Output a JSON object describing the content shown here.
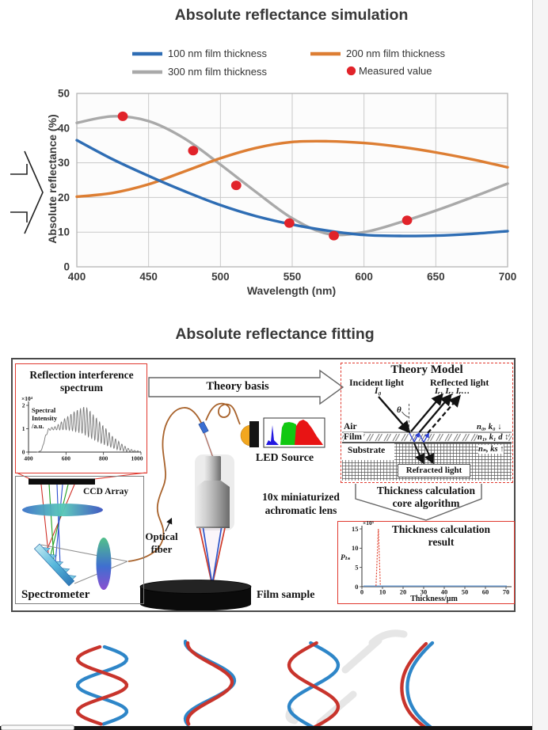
{
  "page": {
    "colors": {
      "accent_red": "#e0392f",
      "outer_box_border": "#4a4a4a",
      "fiber_brown": "#a8622b",
      "helix_red": "#c8342c",
      "helix_blue": "#2e86c8",
      "chart_text": "#3a3a3a"
    }
  },
  "simulation": {
    "title": "Absolute reflectance simulation",
    "xlabel": "Wavelength (nm)",
    "ylabel": "Absolute reflectance (%)",
    "legend": [
      {
        "label": "100 nm film thickness",
        "color": "#2e6db4",
        "marker": "line"
      },
      {
        "label": "200 nm film thickness",
        "color": "#dd7e33",
        "marker": "line"
      },
      {
        "label": "300 nm film thickness",
        "color": "#a9a9a9",
        "marker": "line"
      },
      {
        "label": "Measured value",
        "color": "#e1232a",
        "marker": "dot"
      }
    ]
  },
  "chart_data": [
    {
      "type": "line",
      "title": "Absolute reflectance simulation",
      "xlabel": "Wavelength (nm)",
      "ylabel": "Absolute reflectance (%)",
      "xlim": [
        400,
        700
      ],
      "ylim": [
        0,
        50
      ],
      "xticks": [
        400,
        450,
        500,
        550,
        600,
        650,
        700
      ],
      "yticks": [
        0,
        10,
        20,
        30,
        40,
        50
      ],
      "grid": true,
      "legend_position": "top",
      "x": [
        400,
        425,
        450,
        475,
        500,
        525,
        550,
        575,
        600,
        625,
        650,
        675,
        700
      ],
      "series": [
        {
          "name": "100 nm film thickness",
          "color": "#2e6db4",
          "values": [
            36.5,
            31.0,
            26.2,
            21.8,
            17.8,
            14.6,
            12.2,
            10.4,
            9.2,
            8.9,
            9.0,
            9.5,
            10.3
          ]
        },
        {
          "name": "200 nm film thickness",
          "color": "#dd7e33",
          "values": [
            20.2,
            21.3,
            23.8,
            27.5,
            31.3,
            34.3,
            36.0,
            36.2,
            35.7,
            34.6,
            33.0,
            31.0,
            28.7
          ]
        },
        {
          "name": "300 nm film thickness",
          "color": "#a9a9a9",
          "values": [
            41.5,
            43.4,
            42.0,
            37.0,
            29.5,
            21.5,
            14.0,
            9.5,
            10.0,
            12.8,
            16.2,
            20.0,
            24.0
          ]
        }
      ],
      "measured_points": {
        "name": "Measured value",
        "color": "#e1232a",
        "points": [
          [
            432,
            43.4
          ],
          [
            481,
            33.5
          ],
          [
            511,
            23.5
          ],
          [
            548,
            12.6
          ],
          [
            579,
            9.0
          ],
          [
            630,
            13.4
          ]
        ]
      }
    },
    {
      "type": "line",
      "title": "Reflection interference spectrum",
      "ylabel": "Spectral Intensity /a.u.",
      "y_scale": "×10⁴",
      "xticks": [
        400,
        600,
        800,
        1000
      ],
      "yticks": [
        0,
        1,
        2
      ],
      "xlim": [
        400,
        1000
      ],
      "ylim": [
        0,
        2
      ],
      "envelope_upper": [
        [
          455,
          0.02
        ],
        [
          470,
          0.1
        ],
        [
          490,
          0.7
        ],
        [
          505,
          1.0
        ],
        [
          520,
          1.05
        ],
        [
          545,
          1.1
        ],
        [
          570,
          1.25
        ],
        [
          595,
          1.45
        ],
        [
          620,
          1.6
        ],
        [
          645,
          1.75
        ],
        [
          670,
          1.85
        ],
        [
          695,
          1.95
        ],
        [
          715,
          1.9
        ],
        [
          740,
          1.65
        ],
        [
          765,
          1.45
        ],
        [
          790,
          1.2
        ],
        [
          815,
          1.0
        ],
        [
          845,
          0.7
        ],
        [
          875,
          0.5
        ],
        [
          905,
          0.3
        ],
        [
          935,
          0.15
        ],
        [
          965,
          0.07
        ],
        [
          1000,
          0.04
        ]
      ],
      "envelope_lower": [
        [
          455,
          0.0
        ],
        [
          470,
          0.08
        ],
        [
          490,
          0.6
        ],
        [
          505,
          0.9
        ],
        [
          520,
          0.95
        ],
        [
          545,
          0.95
        ],
        [
          570,
          0.95
        ],
        [
          595,
          0.95
        ],
        [
          620,
          0.92
        ],
        [
          645,
          0.88
        ],
        [
          670,
          0.82
        ],
        [
          695,
          0.75
        ],
        [
          715,
          0.65
        ],
        [
          740,
          0.55
        ],
        [
          765,
          0.45
        ],
        [
          790,
          0.35
        ],
        [
          815,
          0.28
        ],
        [
          845,
          0.18
        ],
        [
          875,
          0.1
        ],
        [
          905,
          0.05
        ],
        [
          935,
          0.02
        ],
        [
          965,
          0.01
        ],
        [
          1000,
          0.0
        ]
      ],
      "fringe_period_nm": 17
    },
    {
      "type": "line",
      "title": "Thickness calculation result",
      "xlabel": "Thickness/μm",
      "ylabel": "Pₗₛ",
      "y_scale": "×10⁵",
      "xticks": [
        0,
        10,
        20,
        30,
        40,
        50,
        60,
        70
      ],
      "yticks": [
        0,
        5,
        10,
        15
      ],
      "xlim": [
        0,
        70
      ],
      "ylim": [
        0,
        15.5
      ],
      "peak": {
        "x": 8,
        "height": 15
      },
      "baseline": 0
    }
  ],
  "fitting": {
    "title": "Absolute reflectance fitting",
    "spectrum_box": {
      "title_line1": "Reflection interference",
      "title_line2": "spectrum",
      "scale_label": "×10⁴",
      "ylabel_line1": "Spectral",
      "ylabel_line2": "Intensity",
      "ylabel_line3": "/a.u."
    },
    "theory_basis_label": "Theory basis",
    "theory_model": {
      "title": "Theory Model",
      "incident_label": "Incident light",
      "incident_symbol": "I₀",
      "reflected_label": "Reflected light",
      "reflected_symbols": "Iᵣ₁ Iᵣ₂ Iᵣ…",
      "theta": "θ",
      "air": "Air",
      "film": "Film",
      "substrate": "Substrate",
      "refracted_label": "Refracted light",
      "air_params": "n₀, k₀ ↓",
      "film_params": "n₁, k₁ d ↕",
      "substrate_params": "nₛ, ks ↑"
    },
    "core_algorithm_line1": "Thickness calculation",
    "core_algorithm_line2": "core algorithm",
    "result_box": {
      "title_line1": "Thickness calculation",
      "title_line2": "result",
      "scale_label": "×10⁵",
      "ylabel": "Pₗₛ",
      "xlabel": "Thickness/μm"
    },
    "spectrometer_label": "Spectrometer",
    "ccd_label": "CCD Array",
    "fiber_label_line1": "Optical",
    "fiber_label_line2": "fiber",
    "led_label": "LED Source",
    "lens_label_line1": "10x miniaturized",
    "lens_label_line2": "achromatic lens",
    "film_sample_label": "Film sample"
  }
}
